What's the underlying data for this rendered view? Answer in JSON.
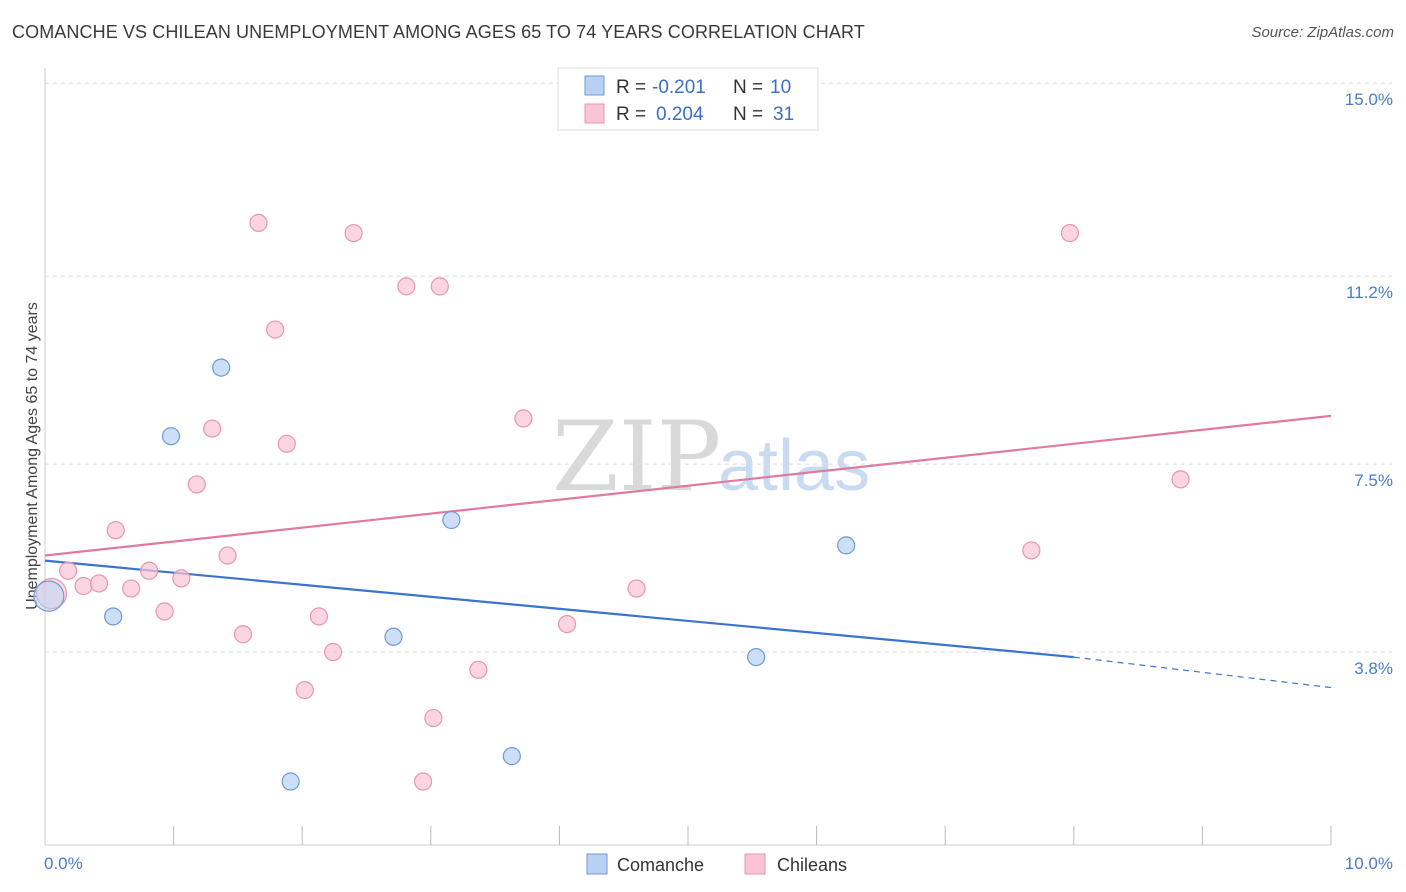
{
  "title": "COMANCHE VS CHILEAN UNEMPLOYMENT AMONG AGES 65 TO 74 YEARS CORRELATION CHART",
  "source": "Source: ZipAtlas.com",
  "watermark": {
    "zip": "ZIP",
    "atlas": "atlas"
  },
  "colors": {
    "comanche_fill": "#b8d1f2",
    "comanche_stroke": "#6f9ad6",
    "comanche_line": "#3b74cc",
    "chilean_fill": "#f9c5d6",
    "chilean_stroke": "#e895b0",
    "chilean_line": "#e07aa0",
    "grid": "#dddddd",
    "tick_text": "#4a7cc9"
  },
  "legend": {
    "rows": [
      {
        "r_label": "R =",
        "r_value": "-0.201",
        "n_label": "N =",
        "n_value": "10"
      },
      {
        "r_label": "R =",
        "r_value": "0.204",
        "n_label": "N =",
        "n_value": "31"
      }
    ]
  },
  "chart_data": {
    "type": "scatter",
    "title": "COMANCHE VS CHILEAN UNEMPLOYMENT AMONG AGES 65 TO 74 YEARS CORRELATION CHART",
    "xlabel": "",
    "ylabel": "Unemployment Among Ages 65 to 74 years",
    "xlim": [
      0,
      10
    ],
    "ylim": [
      0,
      15.3
    ],
    "x_tick_labels": [
      "0.0%",
      "10.0%"
    ],
    "y_ticks": [
      3.8,
      7.5,
      11.2,
      15.0
    ],
    "y_tick_labels": [
      "3.8%",
      "7.5%",
      "11.2%",
      "15.0%"
    ],
    "legend_entries": [
      "Comanche",
      "Chileans"
    ],
    "series": [
      {
        "name": "Comanche",
        "r": -0.201,
        "n": 10,
        "points": [
          {
            "x": 0.03,
            "y": 4.9,
            "size": "large"
          },
          {
            "x": 0.53,
            "y": 4.5
          },
          {
            "x": 0.98,
            "y": 8.05
          },
          {
            "x": 1.37,
            "y": 9.4
          },
          {
            "x": 1.91,
            "y": 1.25
          },
          {
            "x": 2.71,
            "y": 4.1
          },
          {
            "x": 3.16,
            "y": 6.4
          },
          {
            "x": 3.63,
            "y": 1.75
          },
          {
            "x": 5.53,
            "y": 3.7
          },
          {
            "x": 6.23,
            "y": 5.9
          }
        ],
        "trend": {
          "x0": 0,
          "y0": 5.6,
          "x1": 8.0,
          "y1": 3.7,
          "dash_x1": 10.0,
          "dash_y1": 3.1
        }
      },
      {
        "name": "Chileans",
        "r": 0.204,
        "n": 31,
        "points": [
          {
            "x": 0.05,
            "y": 4.95,
            "size": "large"
          },
          {
            "x": 0.18,
            "y": 5.4
          },
          {
            "x": 0.3,
            "y": 5.1
          },
          {
            "x": 0.42,
            "y": 5.15
          },
          {
            "x": 0.55,
            "y": 6.2
          },
          {
            "x": 0.67,
            "y": 5.05
          },
          {
            "x": 0.81,
            "y": 5.4
          },
          {
            "x": 0.93,
            "y": 4.6
          },
          {
            "x": 1.06,
            "y": 5.25
          },
          {
            "x": 1.18,
            "y": 7.1
          },
          {
            "x": 1.3,
            "y": 8.2
          },
          {
            "x": 1.42,
            "y": 5.7
          },
          {
            "x": 1.54,
            "y": 4.15
          },
          {
            "x": 1.66,
            "y": 12.25
          },
          {
            "x": 1.79,
            "y": 10.15
          },
          {
            "x": 1.88,
            "y": 7.9
          },
          {
            "x": 2.02,
            "y": 3.05
          },
          {
            "x": 2.13,
            "y": 4.5
          },
          {
            "x": 2.24,
            "y": 3.8
          },
          {
            "x": 2.4,
            "y": 12.05
          },
          {
            "x": 2.81,
            "y": 11.0
          },
          {
            "x": 2.94,
            "y": 1.25
          },
          {
            "x": 3.02,
            "y": 2.5
          },
          {
            "x": 3.07,
            "y": 11.0
          },
          {
            "x": 3.37,
            "y": 3.45
          },
          {
            "x": 3.72,
            "y": 8.4
          },
          {
            "x": 4.06,
            "y": 4.35
          },
          {
            "x": 4.6,
            "y": 5.05
          },
          {
            "x": 7.67,
            "y": 5.8
          },
          {
            "x": 7.97,
            "y": 12.05
          },
          {
            "x": 8.83,
            "y": 7.2
          }
        ],
        "trend": {
          "x0": 0,
          "y0": 5.7,
          "x1": 10.0,
          "y1": 8.45
        }
      }
    ]
  }
}
